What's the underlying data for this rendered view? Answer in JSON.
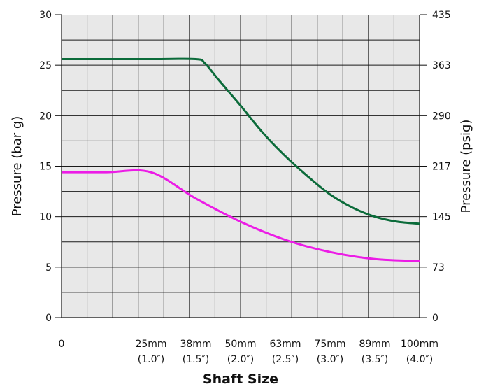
{
  "chart_data": {
    "type": "line",
    "title": "",
    "xlabel": "Shaft Size",
    "ylabel_left": "Pressure (bar g)",
    "ylabel_right": "Pressure (psig)",
    "grid": true,
    "x_categories": [
      {
        "top": "0",
        "bottom": ""
      },
      {
        "top": "25mm",
        "bottom": "(1.0″)"
      },
      {
        "top": "38mm",
        "bottom": "(1.5″)"
      },
      {
        "top": "50mm",
        "bottom": "(2.0″)"
      },
      {
        "top": "63mm",
        "bottom": "(2.5″)"
      },
      {
        "top": "75mm",
        "bottom": "(3.0″)"
      },
      {
        "top": "89mm",
        "bottom": "(3.5″)"
      },
      {
        "top": "100mm",
        "bottom": "(4.0″)"
      }
    ],
    "x_shaft_in": [
      0,
      1.0,
      1.5,
      2.0,
      2.5,
      3.0,
      3.5,
      4.0
    ],
    "ylim_left": [
      0,
      30
    ],
    "yticks_left": [
      "0",
      "5",
      "10",
      "15",
      "20",
      "25",
      "30"
    ],
    "yticks_right": [
      "0",
      "73",
      "145",
      "217",
      "290",
      "363",
      "435"
    ],
    "series": [
      {
        "color": "#0b6b3a",
        "x": [
          0.0,
          1.0,
          1.5,
          1.6,
          1.75,
          2.0,
          2.25,
          2.5,
          2.75,
          3.0,
          3.25,
          3.5,
          3.75,
          4.0
        ],
        "y": [
          25.6,
          25.6,
          25.6,
          25.2,
          23.6,
          21.0,
          18.3,
          16.0,
          14.0,
          12.2,
          10.9,
          10.0,
          9.5,
          9.3
        ]
      },
      {
        "color": "#ec1ce6",
        "x": [
          0.0,
          0.5,
          1.0,
          1.5,
          2.0,
          2.5,
          3.0,
          3.5,
          4.0
        ],
        "y": [
          14.4,
          14.4,
          14.4,
          11.8,
          9.5,
          7.7,
          6.5,
          5.8,
          5.6
        ]
      }
    ]
  }
}
